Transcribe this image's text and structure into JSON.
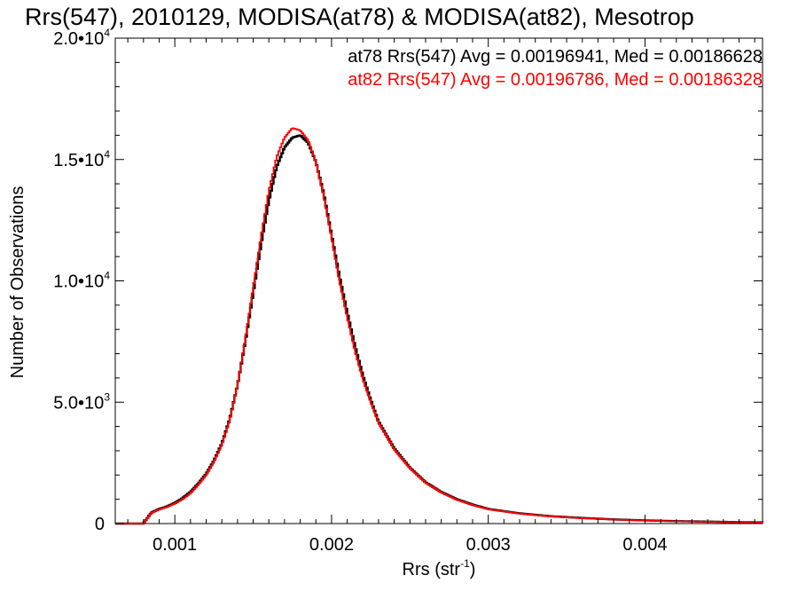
{
  "chart_data": {
    "type": "line",
    "title": "Rrs(547), 2010129, MODISA(at78) & MODISA(at82), Mesotrop",
    "xlabel": "Rrs (str",
    "xlabel_sup": "-1",
    "xlabel_close": ")",
    "ylabel": "Number of Observations",
    "xlim": [
      0.00062,
      0.00475
    ],
    "ylim": [
      0,
      20000
    ],
    "xticks": [
      {
        "value": 0.001,
        "label": "0.001"
      },
      {
        "value": 0.002,
        "label": "0.002"
      },
      {
        "value": 0.003,
        "label": "0.003"
      },
      {
        "value": 0.004,
        "label": "0.004"
      }
    ],
    "yticks": [
      {
        "value": 0,
        "label": "0",
        "sup": ""
      },
      {
        "value": 5000,
        "label": "5.0•10",
        "sup": "3"
      },
      {
        "value": 10000,
        "label": "1.0•10",
        "sup": "4"
      },
      {
        "value": 15000,
        "label": "1.5•10",
        "sup": "4"
      },
      {
        "value": 20000,
        "label": "2.0•10",
        "sup": "4"
      }
    ],
    "grid": false,
    "legend_position": "top-right",
    "annotations": [
      {
        "text": "at78 Rrs(547) Avg = 0.00196941, Med = 0.00186628",
        "color": "#000000"
      },
      {
        "text": "at82 Rrs(547) Avg = 0.00196786, Med = 0.00186328",
        "color": "#ff0000"
      }
    ],
    "series": [
      {
        "color": "#000000",
        "style": "step",
        "x": [
          0.0008,
          0.00085,
          0.0009,
          0.00095,
          0.001,
          0.00105,
          0.0011,
          0.00115,
          0.0012,
          0.00125,
          0.0013,
          0.00135,
          0.0014,
          0.00145,
          0.0015,
          0.00155,
          0.0016,
          0.00165,
          0.0017,
          0.00175,
          0.0018,
          0.00185,
          0.0019,
          0.00195,
          0.002,
          0.00205,
          0.0021,
          0.00215,
          0.0022,
          0.00225,
          0.0023,
          0.0024,
          0.0025,
          0.0026,
          0.0027,
          0.0028,
          0.0029,
          0.003,
          0.0032,
          0.0034,
          0.0036,
          0.0038,
          0.004,
          0.0042,
          0.0044,
          0.0046,
          0.00475
        ],
        "y": [
          0,
          450,
          600,
          700,
          850,
          1050,
          1300,
          1650,
          2050,
          2600,
          3300,
          4300,
          5700,
          7500,
          9500,
          11500,
          13300,
          14700,
          15500,
          15900,
          16000,
          15700,
          14900,
          13600,
          11900,
          10200,
          8700,
          7300,
          6100,
          5100,
          4200,
          3100,
          2300,
          1700,
          1300,
          1000,
          780,
          600,
          420,
          300,
          230,
          170,
          130,
          100,
          80,
          60,
          50
        ]
      },
      {
        "color": "#ff0000",
        "style": "step",
        "x": [
          0.0008,
          0.00085,
          0.0009,
          0.00095,
          0.001,
          0.00105,
          0.0011,
          0.00115,
          0.0012,
          0.00125,
          0.0013,
          0.00135,
          0.0014,
          0.00145,
          0.0015,
          0.00155,
          0.0016,
          0.00165,
          0.0017,
          0.00175,
          0.0018,
          0.00185,
          0.0019,
          0.00195,
          0.002,
          0.00205,
          0.0021,
          0.00215,
          0.0022,
          0.00225,
          0.0023,
          0.0024,
          0.0025,
          0.0026,
          0.0027,
          0.0028,
          0.0029,
          0.003,
          0.0032,
          0.0034,
          0.0036,
          0.0038,
          0.004,
          0.0042,
          0.0044,
          0.0046,
          0.00475
        ],
        "y": [
          0,
          430,
          580,
          680,
          820,
          1000,
          1250,
          1600,
          2000,
          2550,
          3250,
          4250,
          5700,
          7600,
          9700,
          11800,
          13700,
          15100,
          15900,
          16300,
          16200,
          15800,
          14900,
          13500,
          11800,
          10000,
          8500,
          7100,
          5950,
          5000,
          4150,
          3050,
          2280,
          1680,
          1280,
          980,
          760,
          590,
          410,
          290,
          220,
          165,
          125,
          95,
          75,
          55,
          45
        ]
      }
    ]
  }
}
